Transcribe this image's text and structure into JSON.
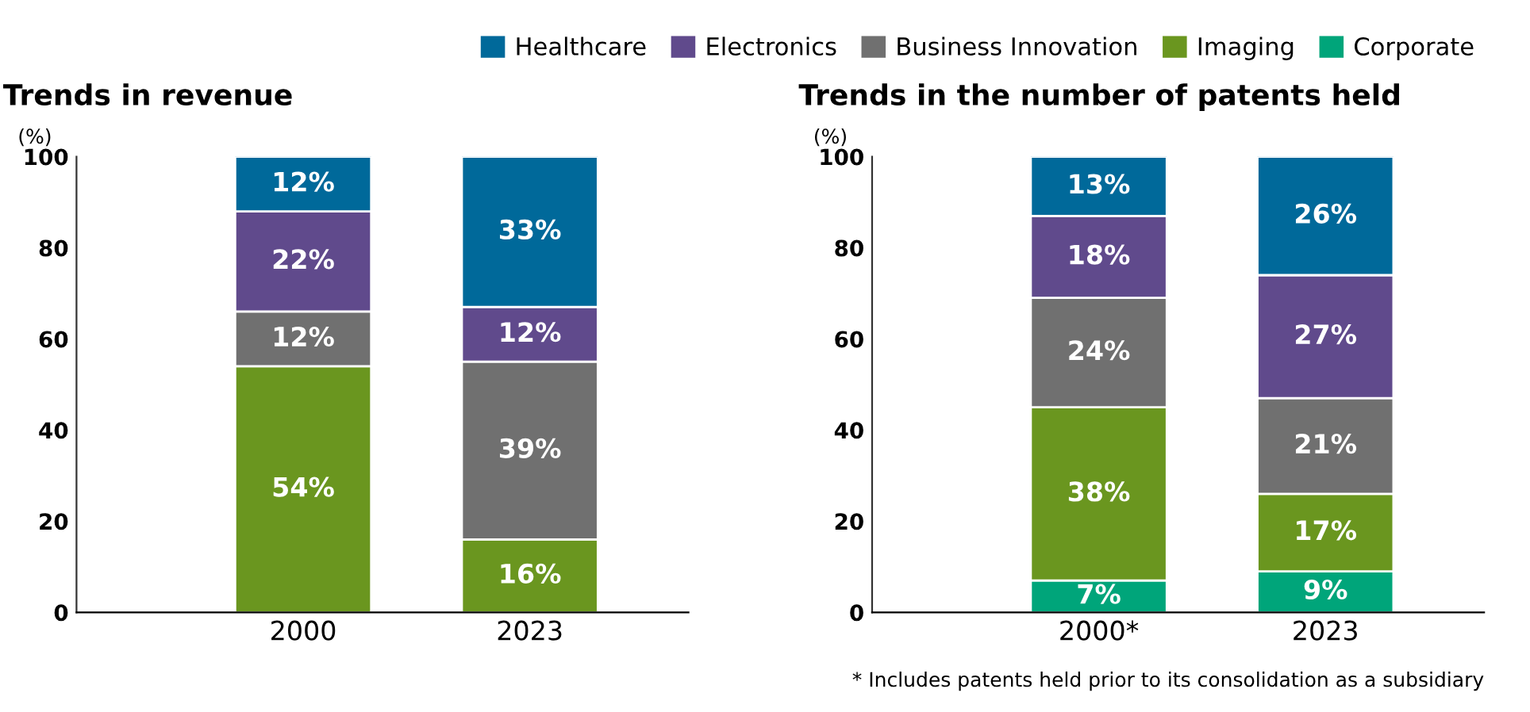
{
  "chart_data": [
    {
      "type": "bar",
      "title": "Trends in revenue",
      "ylabel": "(%)",
      "stacked": true,
      "categories": [
        "2000",
        "2023"
      ],
      "ylim": [
        0,
        100
      ],
      "yticks": [
        0,
        20,
        40,
        60,
        80,
        100
      ],
      "grid": false,
      "series": [
        {
          "color": "#00a57a",
          "values": [
            null,
            null
          ],
          "value_labels": [
            null,
            null
          ]
        },
        {
          "color": "#6a961f",
          "values": [
            54,
            16
          ],
          "value_labels": [
            "54%",
            "16%"
          ]
        },
        {
          "color": "#707070",
          "values": [
            12,
            39
          ],
          "value_labels": [
            "12%",
            "39%"
          ]
        },
        {
          "color": "#604a8c",
          "values": [
            22,
            12
          ],
          "value_labels": [
            "22%",
            "12%"
          ]
        },
        {
          "color": "#00699a",
          "values": [
            12,
            33
          ],
          "value_labels": [
            "12%",
            "33%"
          ]
        }
      ]
    },
    {
      "type": "bar",
      "title": "Trends in the number of patents held",
      "ylabel": "(%)",
      "stacked": true,
      "categories": [
        "2000*",
        "2023"
      ],
      "ylim": [
        0,
        100
      ],
      "yticks": [
        0,
        20,
        40,
        60,
        80,
        100
      ],
      "grid": false,
      "legend": "top",
      "annotations": [
        "* Includes patents held prior to its consolidation as a subsidiary"
      ],
      "series": [
        {
          "name": "Corporate",
          "color": "#00a57a",
          "values": [
            7,
            9
          ],
          "value_labels": [
            "7%",
            "9%"
          ]
        },
        {
          "name": "Imaging",
          "color": "#6a961f",
          "values": [
            38,
            17
          ],
          "value_labels": [
            "38%",
            "17%"
          ]
        },
        {
          "name": "Business Innovation",
          "color": "#707070",
          "values": [
            24,
            21
          ],
          "value_labels": [
            "24%",
            "21%"
          ]
        },
        {
          "name": "Electronics",
          "color": "#604a8c",
          "values": [
            18,
            27
          ],
          "value_labels": [
            "18%",
            "27%"
          ]
        },
        {
          "name": "Healthcare",
          "color": "#00699a",
          "values": [
            13,
            26
          ],
          "value_labels": [
            "13%",
            "26%"
          ]
        }
      ]
    }
  ]
}
